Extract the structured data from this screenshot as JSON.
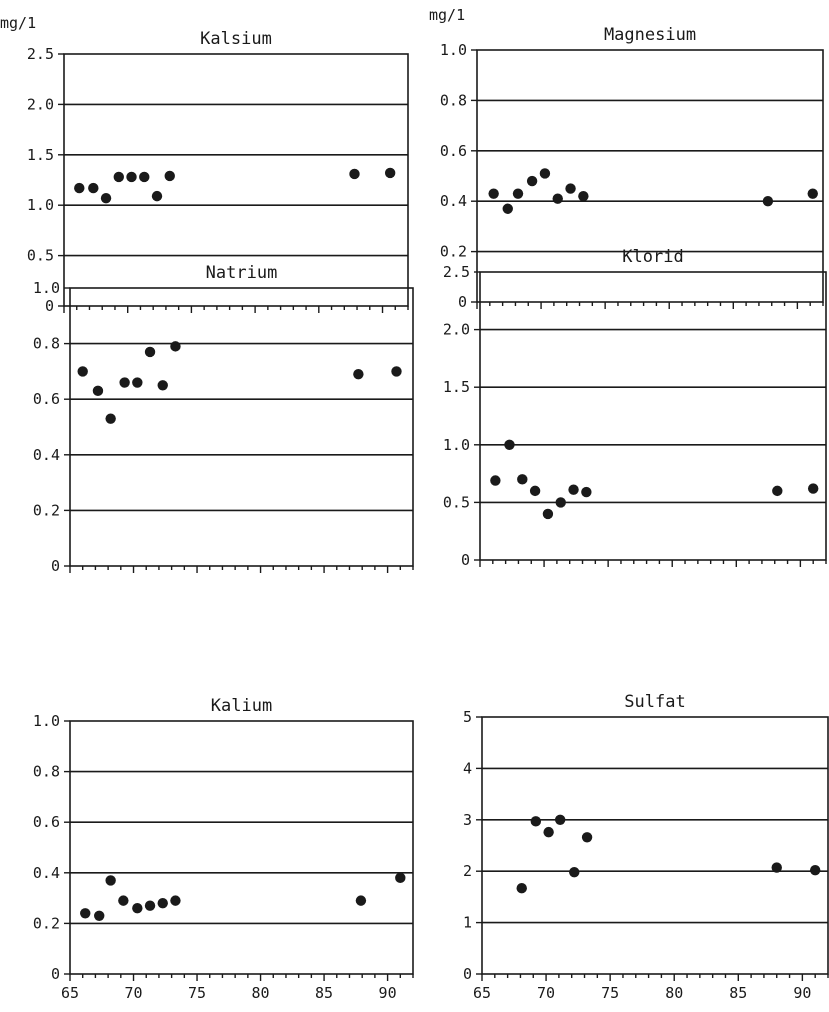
{
  "chart_data": [
    {
      "type": "scatter",
      "title": "Kalsium",
      "ylabel": "mg/1",
      "ylim": [
        0,
        2.5
      ],
      "yticks": [
        "0",
        "0.5",
        "1.0",
        "1.5",
        "2.0",
        "2.5"
      ],
      "xlim": [
        65,
        92
      ],
      "xticks": [],
      "grid": true,
      "points": [
        {
          "x": 66.2,
          "y": 1.17
        },
        {
          "x": 67.3,
          "y": 1.17
        },
        {
          "x": 68.3,
          "y": 1.07
        },
        {
          "x": 69.3,
          "y": 1.28
        },
        {
          "x": 70.3,
          "y": 1.28
        },
        {
          "x": 71.3,
          "y": 1.28
        },
        {
          "x": 72.3,
          "y": 1.09
        },
        {
          "x": 73.3,
          "y": 1.29
        },
        {
          "x": 87.8,
          "y": 1.31
        },
        {
          "x": 90.6,
          "y": 1.32
        }
      ]
    },
    {
      "type": "scatter",
      "title": "Magnesium",
      "ylabel": "mg/1",
      "ylim": [
        0,
        1.0
      ],
      "yticks": [
        "0",
        "0.2",
        "0.4",
        "0.6",
        "0.8",
        "1.0"
      ],
      "xlim": [
        65,
        92
      ],
      "xticks": [],
      "grid": true,
      "points": [
        {
          "x": 66.3,
          "y": 0.43
        },
        {
          "x": 67.4,
          "y": 0.37
        },
        {
          "x": 68.2,
          "y": 0.43
        },
        {
          "x": 69.3,
          "y": 0.48
        },
        {
          "x": 70.3,
          "y": 0.51
        },
        {
          "x": 71.3,
          "y": 0.41
        },
        {
          "x": 72.3,
          "y": 0.45
        },
        {
          "x": 73.3,
          "y": 0.42
        },
        {
          "x": 87.7,
          "y": 0.4
        },
        {
          "x": 91.2,
          "y": 0.43
        }
      ]
    },
    {
      "type": "scatter",
      "title": "Natrium",
      "ylabel": "",
      "ylim": [
        0,
        1.0
      ],
      "yticks": [
        "0",
        "0.2",
        "0.4",
        "0.6",
        "0.8",
        "1.0"
      ],
      "xlim": [
        65,
        92
      ],
      "xticks": [],
      "grid": true,
      "points": [
        {
          "x": 66.0,
          "y": 0.7
        },
        {
          "x": 67.2,
          "y": 0.63
        },
        {
          "x": 68.2,
          "y": 0.53
        },
        {
          "x": 69.3,
          "y": 0.66
        },
        {
          "x": 70.3,
          "y": 0.66
        },
        {
          "x": 71.3,
          "y": 0.77
        },
        {
          "x": 72.3,
          "y": 0.65
        },
        {
          "x": 73.3,
          "y": 0.79
        },
        {
          "x": 87.7,
          "y": 0.69
        },
        {
          "x": 90.7,
          "y": 0.7
        }
      ]
    },
    {
      "type": "scatter",
      "title": "Klorid",
      "ylabel": "",
      "ylim": [
        0,
        2.5
      ],
      "yticks": [
        "0",
        "0.5",
        "1.0",
        "1.5",
        "2.0",
        "2.5"
      ],
      "xlim": [
        65,
        92
      ],
      "xticks": [],
      "grid": true,
      "points": [
        {
          "x": 66.2,
          "y": 0.69
        },
        {
          "x": 67.3,
          "y": 1.0
        },
        {
          "x": 68.3,
          "y": 0.7
        },
        {
          "x": 69.3,
          "y": 0.6
        },
        {
          "x": 70.3,
          "y": 0.4
        },
        {
          "x": 71.3,
          "y": 0.5
        },
        {
          "x": 72.3,
          "y": 0.61
        },
        {
          "x": 73.3,
          "y": 0.59
        },
        {
          "x": 88.2,
          "y": 0.6
        },
        {
          "x": 91.0,
          "y": 0.62
        }
      ]
    },
    {
      "type": "scatter",
      "title": "Kalium",
      "ylabel": "",
      "ylim": [
        0,
        1.0
      ],
      "yticks": [
        "0",
        "0.2",
        "0.4",
        "0.6",
        "0.8",
        "1.0"
      ],
      "xlim": [
        65,
        92
      ],
      "xticks": [
        "65",
        "70",
        "75",
        "80",
        "85",
        "90"
      ],
      "grid": true,
      "points": [
        {
          "x": 66.2,
          "y": 0.24
        },
        {
          "x": 67.3,
          "y": 0.23
        },
        {
          "x": 68.2,
          "y": 0.37
        },
        {
          "x": 69.2,
          "y": 0.29
        },
        {
          "x": 70.3,
          "y": 0.26
        },
        {
          "x": 71.3,
          "y": 0.27
        },
        {
          "x": 72.3,
          "y": 0.28
        },
        {
          "x": 73.3,
          "y": 0.29
        },
        {
          "x": 87.9,
          "y": 0.29
        },
        {
          "x": 91.0,
          "y": 0.38
        }
      ]
    },
    {
      "type": "scatter",
      "title": "Sulfat",
      "ylabel": "",
      "ylim": [
        0,
        5
      ],
      "yticks": [
        "0",
        "1",
        "2",
        "3",
        "4",
        "5"
      ],
      "xlim": [
        65,
        92
      ],
      "xticks": [
        "65",
        "70",
        "75",
        "80",
        "85",
        "90"
      ],
      "grid": true,
      "points": [
        {
          "x": 68.1,
          "y": 1.67
        },
        {
          "x": 69.2,
          "y": 2.97
        },
        {
          "x": 70.2,
          "y": 2.76
        },
        {
          "x": 71.1,
          "y": 3.0
        },
        {
          "x": 72.2,
          "y": 1.98
        },
        {
          "x": 73.2,
          "y": 2.66
        },
        {
          "x": 88.0,
          "y": 2.07
        },
        {
          "x": 91.0,
          "y": 2.02
        }
      ]
    }
  ]
}
